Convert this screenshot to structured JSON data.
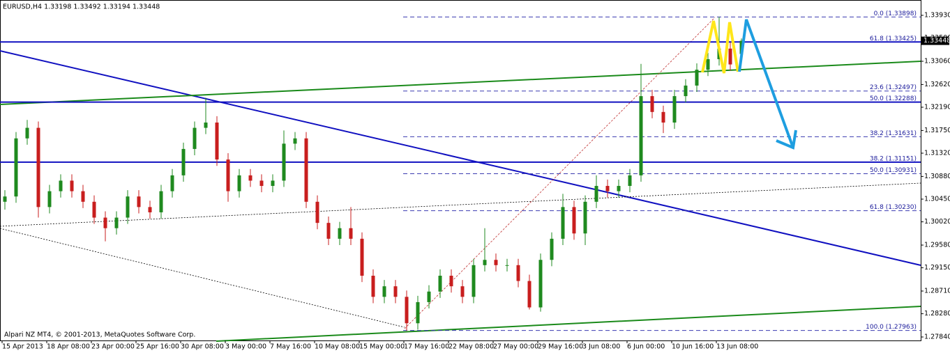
{
  "chart_data": {
    "type": "candlestick",
    "header": "EURUSD,H4  1.33198 1.33492 1.33194 1.33448",
    "footer": "Alpari NZ MT4, © 2001-2013, MetaQuotes Software Corp.",
    "up_color": "#1f8a1f",
    "down_color": "#c81e1e",
    "x": [
      1,
      5,
      9,
      13,
      17,
      21,
      25,
      29,
      33,
      37,
      41,
      45,
      49,
      53,
      57,
      61,
      65,
      69,
      73,
      77,
      81,
      85,
      89,
      93,
      97,
      101,
      105,
      109,
      113,
      117,
      121,
      125,
      129,
      133,
      137,
      141,
      145,
      149,
      153,
      157,
      161,
      165,
      169,
      173,
      177,
      181,
      185,
      189,
      193,
      197,
      201,
      205,
      209,
      213,
      217,
      221,
      225,
      229,
      233,
      237,
      241,
      245,
      249,
      253,
      257,
      261,
      265
    ],
    "open": [
      1.304,
      1.305,
      1.316,
      1.318,
      1.303,
      1.306,
      1.308,
      1.306,
      1.304,
      1.301,
      1.299,
      1.301,
      1.305,
      1.303,
      1.302,
      1.306,
      1.309,
      1.314,
      1.318,
      1.319,
      1.312,
      1.306,
      1.309,
      1.308,
      1.307,
      1.308,
      1.315,
      1.316,
      1.304,
      1.3,
      1.297,
      1.299,
      1.297,
      1.29,
      1.286,
      1.288,
      1.286,
      1.281,
      1.285,
      1.287,
      1.29,
      1.288,
      1.286,
      1.292,
      1.293,
      1.292,
      1.292,
      1.289,
      1.284,
      1.293,
      1.297,
      1.303,
      1.298,
      1.304,
      1.307,
      1.306,
      1.307,
      1.309,
      1.324,
      1.321,
      1.319,
      1.324,
      1.326,
      1.329,
      1.331,
      1.333,
      1.33198
    ],
    "high": [
      1.3062,
      1.3172,
      1.3195,
      1.3192,
      1.3072,
      1.3092,
      1.3092,
      1.3072,
      1.3052,
      1.3022,
      1.3022,
      1.3062,
      1.3062,
      1.3042,
      1.3072,
      1.3102,
      1.3152,
      1.3192,
      1.3237,
      1.3202,
      1.3132,
      1.3102,
      1.3102,
      1.3092,
      1.3092,
      1.3175,
      1.3172,
      1.3172,
      1.3052,
      1.3012,
      1.3002,
      1.303,
      1.2982,
      1.2912,
      1.2892,
      1.2892,
      1.2872,
      1.2862,
      1.2882,
      1.2912,
      1.2912,
      1.2892,
      1.2932,
      1.299,
      1.2942,
      1.2932,
      1.2932,
      1.2902,
      1.2942,
      1.2982,
      1.3055,
      1.3042,
      1.3052,
      1.309,
      1.3082,
      1.3082,
      1.3102,
      1.3301,
      1.3252,
      1.3222,
      1.3252,
      1.3272,
      1.3302,
      1.3322,
      1.339,
      1.3342,
      1.33492
    ],
    "low": [
      1.3025,
      1.3038,
      1.3148,
      1.301,
      1.3018,
      1.3048,
      1.3048,
      1.3028,
      1.2998,
      1.2965,
      1.2978,
      1.2998,
      1.3018,
      1.3008,
      1.3008,
      1.3048,
      1.3078,
      1.3128,
      1.3168,
      1.3108,
      1.304,
      1.3048,
      1.3068,
      1.3058,
      1.3058,
      1.3068,
      1.3138,
      1.3028,
      1.2988,
      1.2958,
      1.2958,
      1.2958,
      1.2888,
      1.2848,
      1.2848,
      1.2848,
      1.2796,
      1.2798,
      1.2838,
      1.2858,
      1.2868,
      1.2848,
      1.2848,
      1.2908,
      1.2908,
      1.2908,
      1.2878,
      1.2836,
      1.2832,
      1.2918,
      1.2958,
      1.2968,
      1.2958,
      1.3028,
      1.3048,
      1.3048,
      1.3058,
      1.3078,
      1.3198,
      1.317,
      1.3178,
      1.3228,
      1.3248,
      1.3278,
      1.3298,
      1.3288,
      1.33194
    ],
    "close": [
      1.305,
      1.316,
      1.318,
      1.303,
      1.306,
      1.308,
      1.306,
      1.304,
      1.301,
      1.299,
      1.301,
      1.305,
      1.303,
      1.302,
      1.306,
      1.309,
      1.314,
      1.318,
      1.319,
      1.312,
      1.306,
      1.309,
      1.308,
      1.307,
      1.308,
      1.315,
      1.316,
      1.304,
      1.3,
      1.297,
      1.299,
      1.297,
      1.29,
      1.286,
      1.288,
      1.286,
      1.281,
      1.285,
      1.287,
      1.29,
      1.288,
      1.286,
      1.292,
      1.293,
      1.292,
      1.292,
      1.289,
      1.284,
      1.293,
      1.297,
      1.303,
      1.298,
      1.304,
      1.307,
      1.306,
      1.307,
      1.309,
      1.324,
      1.321,
      1.319,
      1.324,
      1.326,
      1.329,
      1.331,
      1.333,
      1.33,
      1.33448
    ],
    "xlim": [
      -0.75,
      329.25
    ],
    "ylim": [
      1.27774,
      1.3422
    ],
    "yticks": [
      {
        "value": 1.3393,
        "label": "1.33930"
      },
      {
        "value": 1.335,
        "label": "1.33500"
      },
      {
        "value": 1.3306,
        "label": "1.33060"
      },
      {
        "value": 1.3262,
        "label": "1.32620"
      },
      {
        "value": 1.3219,
        "label": "1.32190"
      },
      {
        "value": 1.3175,
        "label": "1.31750"
      },
      {
        "value": 1.3132,
        "label": "1.31320"
      },
      {
        "value": 1.3088,
        "label": "1.30880"
      },
      {
        "value": 1.3045,
        "label": "1.30450"
      },
      {
        "value": 1.3002,
        "label": "1.30020"
      },
      {
        "value": 1.2958,
        "label": "1.29580"
      },
      {
        "value": 1.2915,
        "label": "1.29150"
      },
      {
        "value": 1.2871,
        "label": "1.28710"
      },
      {
        "value": 1.2828,
        "label": "1.28280"
      },
      {
        "value": 1.2784,
        "label": "1.27840"
      }
    ],
    "xticks": [
      {
        "value": 0,
        "label": "15 Apr 2013"
      },
      {
        "value": 16,
        "label": "18 Apr 08:00"
      },
      {
        "value": 32,
        "label": "23 Apr 00:00"
      },
      {
        "value": 48,
        "label": "25 Apr 16:00"
      },
      {
        "value": 64,
        "label": "30 Apr 08:00"
      },
      {
        "value": 80,
        "label": "3 May 00:00"
      },
      {
        "value": 96,
        "label": "7 May 16:00"
      },
      {
        "value": 112,
        "label": "10 May 08:00"
      },
      {
        "value": 128,
        "label": "15 May 00:00"
      },
      {
        "value": 144,
        "label": "17 May 16:00"
      },
      {
        "value": 160,
        "label": "22 May 08:00"
      },
      {
        "value": 176,
        "label": "27 May 00:00"
      },
      {
        "value": 192,
        "label": "29 May 16:00"
      },
      {
        "value": 208,
        "label": "3 Jun 08:00"
      },
      {
        "value": 224,
        "label": "6 Jun 00:00"
      },
      {
        "value": 240,
        "label": "10 Jun 16:00"
      },
      {
        "value": 256,
        "label": "13 Jun 08:00"
      }
    ],
    "levels": [
      {
        "label": "0.0 (1.33898)",
        "value": 1.33898,
        "style": "dashed"
      },
      {
        "label": "61.8 (1.33425)",
        "value": 1.33425,
        "style": "solid"
      },
      {
        "label": "23.6 (1.32497)",
        "value": 1.32497,
        "style": "dashed"
      },
      {
        "label": "50.0 (1.32288)",
        "value": 1.32288,
        "style": "solid"
      },
      {
        "label": "38.2 (1.31631)",
        "value": 1.31631,
        "style": "dashed"
      },
      {
        "label": "38.2 (1.31151)",
        "value": 1.31151,
        "style": "solid"
      },
      {
        "label": "50.0 (1.30931)",
        "value": 1.30931,
        "style": "dashed"
      },
      {
        "label": "61.8 (1.30230)",
        "value": 1.3023,
        "style": "dashed"
      },
      {
        "label": "100.0 (1.27963)",
        "value": 1.27963,
        "style": "dashed"
      }
    ],
    "current_price": {
      "value": 1.33448,
      "label": "1.33448"
    }
  }
}
